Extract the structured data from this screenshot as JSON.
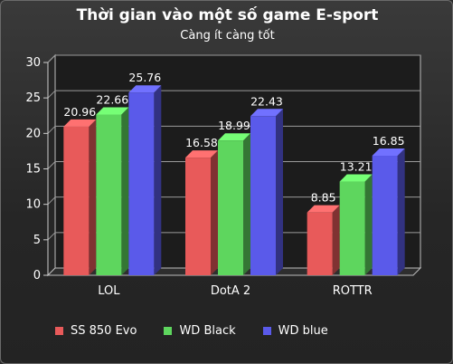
{
  "chart_data": {
    "type": "bar",
    "title": "Thời gian vào một số game E-sport",
    "subtitle": "Càng ít càng tốt",
    "categories": [
      "LOL",
      "DotA 2",
      "ROTTR"
    ],
    "series": [
      {
        "name": "SS 850 Evo",
        "values": [
          20.96,
          16.58,
          8.85
        ],
        "color": "#e85a5a"
      },
      {
        "name": "WD Black",
        "values": [
          22.66,
          18.99,
          13.21
        ],
        "color": "#5ed65e"
      },
      {
        "name": "WD blue",
        "values": [
          25.76,
          22.43,
          16.85
        ],
        "color": "#5a5aea"
      }
    ],
    "ylim": [
      0,
      30
    ],
    "yticks": [
      0,
      5,
      10,
      15,
      20,
      25,
      30
    ],
    "grid": true,
    "legend_position": "bottom-left"
  }
}
